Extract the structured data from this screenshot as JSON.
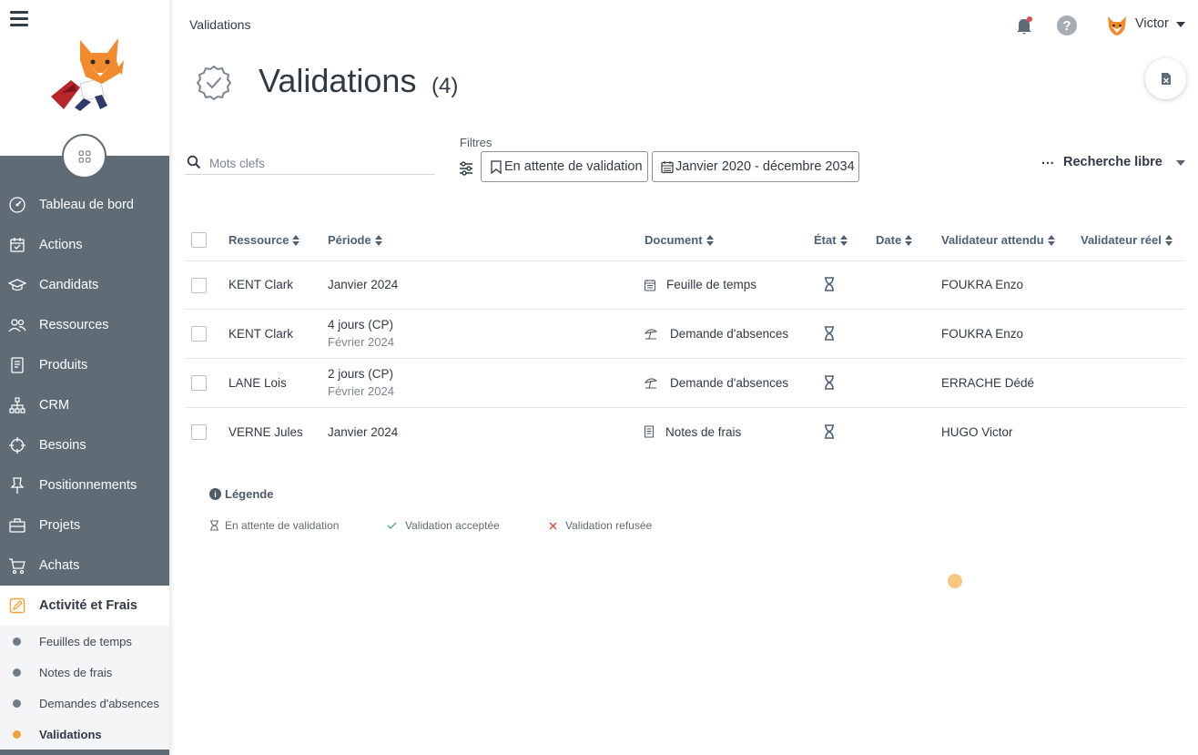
{
  "header": {
    "breadcrumb": "Validations",
    "user_name": "Victor",
    "help_glyph": "?"
  },
  "sidebar": {
    "nav": [
      {
        "label": "Tableau de bord",
        "icon": "dashboard-icon"
      },
      {
        "label": "Actions",
        "icon": "calendar-check-icon"
      },
      {
        "label": "Candidats",
        "icon": "graduation-cap-icon"
      },
      {
        "label": "Ressources",
        "icon": "people-icon"
      },
      {
        "label": "Produits",
        "icon": "book-icon"
      },
      {
        "label": "CRM",
        "icon": "hierarchy-icon"
      },
      {
        "label": "Besoins",
        "icon": "crosshair-icon"
      },
      {
        "label": "Positionnements",
        "icon": "pin-icon"
      },
      {
        "label": "Projets",
        "icon": "briefcase-icon"
      },
      {
        "label": "Achats",
        "icon": "cart-icon"
      }
    ],
    "active_section": "Activité et Frais",
    "sub_items": [
      {
        "label": "Feuilles de temps"
      },
      {
        "label": "Notes de frais"
      },
      {
        "label": "Demandes d'absences"
      },
      {
        "label": "Validations"
      }
    ],
    "active_color": "#f0a435",
    "nav_bg": "#5f6b75"
  },
  "page": {
    "title": "Validations",
    "count": "(4)"
  },
  "filters": {
    "search_placeholder": "Mots clefs",
    "label": "Filtres",
    "status_chip": "En attente de validation",
    "period_chip": "Janvier 2020 - décembre 2034",
    "free_search_dots": "···",
    "free_search": "Recherche libre"
  },
  "table": {
    "columns": [
      "Ressource",
      "Période",
      "Document",
      "État",
      "Date",
      "Validateur attendu",
      "Validateur réel"
    ],
    "rows": [
      {
        "ressource": "KENT Clark",
        "periode": "Janvier 2024",
        "periode_sub": "",
        "document": "Feuille de temps",
        "doc_icon": "timesheet-icon",
        "etat": "pending",
        "date": "",
        "validateur_attendu": "FOUKRA Enzo",
        "validateur_reel": ""
      },
      {
        "ressource": "KENT Clark",
        "periode": "4 jours (CP)",
        "periode_sub": "Février 2024",
        "document": "Demande d'absences",
        "doc_icon": "beach-umbrella-icon",
        "etat": "pending",
        "date": "",
        "validateur_attendu": "FOUKRA Enzo",
        "validateur_reel": ""
      },
      {
        "ressource": "LANE Lois",
        "periode": "2 jours (CP)",
        "periode_sub": "Février 2024",
        "document": "Demande d'absences",
        "doc_icon": "beach-umbrella-icon",
        "etat": "pending",
        "date": "",
        "validateur_attendu": "ERRACHE Dédé",
        "validateur_reel": ""
      },
      {
        "ressource": "VERNE Jules",
        "periode": "Janvier 2024",
        "periode_sub": "",
        "document": "Notes de frais",
        "doc_icon": "receipt-icon",
        "etat": "pending",
        "date": "",
        "validateur_attendu": "HUGO Victor",
        "validateur_reel": ""
      }
    ]
  },
  "legend": {
    "title": "Légende",
    "info_glyph": "i",
    "items": [
      {
        "label": "En attente de validation",
        "icon": "hourglass-icon",
        "color": "#5f6b75"
      },
      {
        "label": "Validation acceptée",
        "icon": "check-icon",
        "color": "#4caf7d"
      },
      {
        "label": "Validation refusée",
        "icon": "cross-icon",
        "color": "#e0463c"
      }
    ]
  }
}
